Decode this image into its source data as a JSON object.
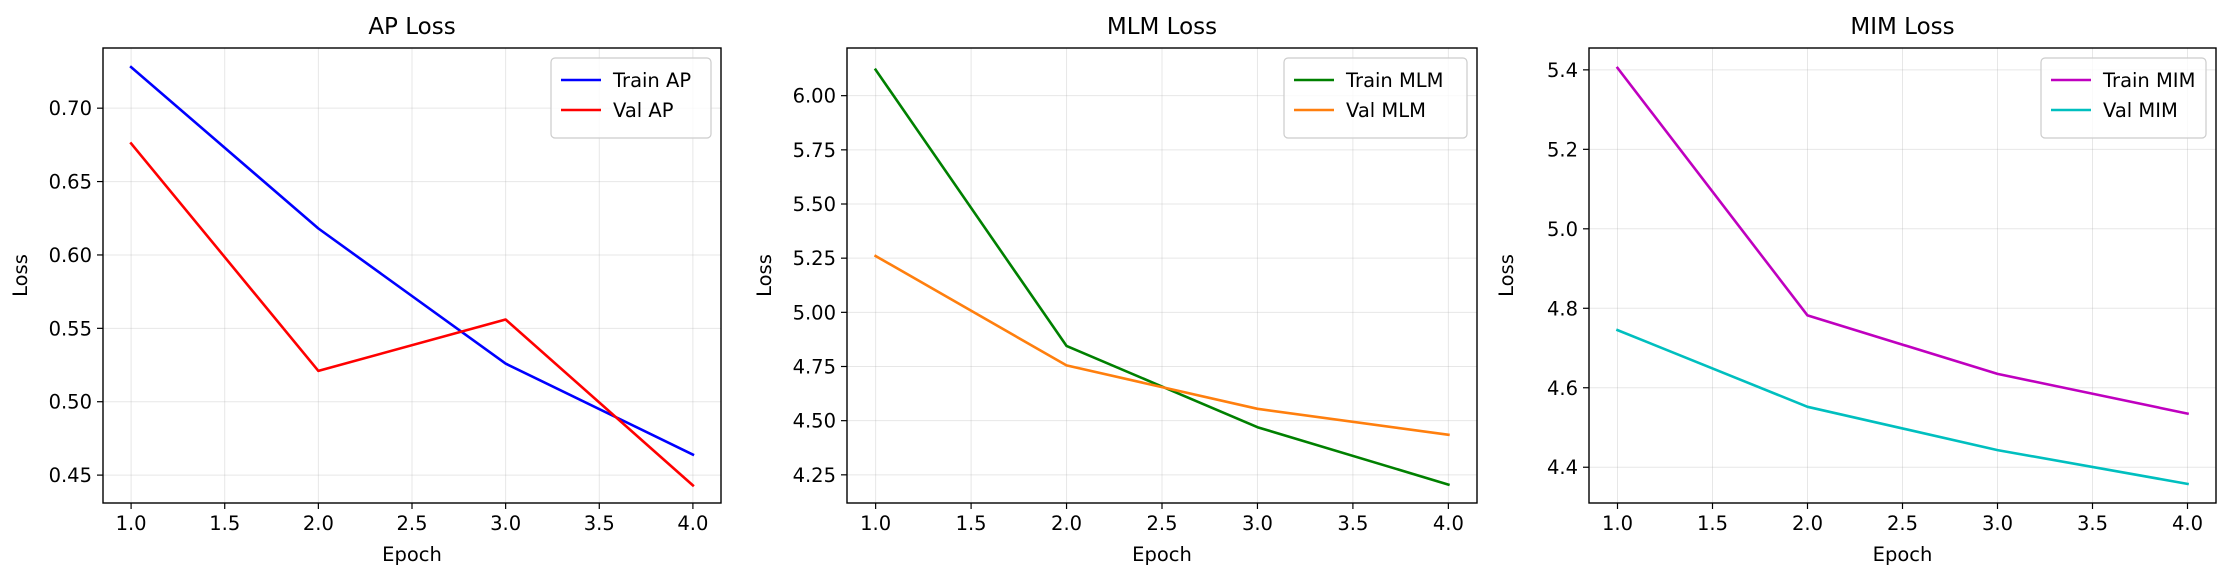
{
  "chart_data": [
    {
      "type": "line",
      "title": "AP Loss",
      "xlabel": "Epoch",
      "ylabel": "Loss",
      "xlim": [
        0.85,
        4.15
      ],
      "ylim": [
        0.431,
        0.741
      ],
      "xticks": [
        1.0,
        1.5,
        2.0,
        2.5,
        3.0,
        3.5,
        4.0
      ],
      "xtick_labels": [
        "1.0",
        "1.5",
        "2.0",
        "2.5",
        "3.0",
        "3.5",
        "4.0"
      ],
      "yticks": [
        0.45,
        0.5,
        0.55,
        0.6,
        0.65,
        0.7
      ],
      "ytick_labels": [
        "0.45",
        "0.50",
        "0.55",
        "0.60",
        "0.65",
        "0.70"
      ],
      "grid": true,
      "legend_position": "top-right",
      "series": [
        {
          "name": "Train AP",
          "color": "#0000ff",
          "x": [
            1,
            2,
            3,
            4
          ],
          "y": [
            0.728,
            0.618,
            0.526,
            0.464
          ]
        },
        {
          "name": "Val AP",
          "color": "#ff0000",
          "x": [
            1,
            2,
            3,
            4
          ],
          "y": [
            0.676,
            0.521,
            0.556,
            0.443
          ]
        }
      ]
    },
    {
      "type": "line",
      "title": "MLM Loss",
      "xlabel": "Epoch",
      "ylabel": "Loss",
      "xlim": [
        0.85,
        4.15
      ],
      "ylim": [
        4.12,
        6.22
      ],
      "xticks": [
        1.0,
        1.5,
        2.0,
        2.5,
        3.0,
        3.5,
        4.0
      ],
      "xtick_labels": [
        "1.0",
        "1.5",
        "2.0",
        "2.5",
        "3.0",
        "3.5",
        "4.0"
      ],
      "yticks": [
        4.25,
        4.5,
        4.75,
        5.0,
        5.25,
        5.5,
        5.75,
        6.0
      ],
      "ytick_labels": [
        "4.25",
        "4.50",
        "4.75",
        "5.00",
        "5.25",
        "5.50",
        "5.75",
        "6.00"
      ],
      "grid": true,
      "legend_position": "top-right",
      "series": [
        {
          "name": "Train MLM",
          "color": "#008000",
          "x": [
            1,
            2,
            3,
            4
          ],
          "y": [
            6.12,
            4.845,
            4.47,
            4.205
          ]
        },
        {
          "name": "Val MLM",
          "color": "#ff7f0e",
          "x": [
            1,
            2,
            3,
            4
          ],
          "y": [
            5.26,
            4.755,
            4.555,
            4.435
          ]
        }
      ]
    },
    {
      "type": "line",
      "title": "MIM Loss",
      "xlabel": "Epoch",
      "ylabel": "Loss",
      "xlim": [
        0.85,
        4.15
      ],
      "ylim": [
        4.31,
        5.455
      ],
      "xticks": [
        1.0,
        1.5,
        2.0,
        2.5,
        3.0,
        3.5,
        4.0
      ],
      "xtick_labels": [
        "1.0",
        "1.5",
        "2.0",
        "2.5",
        "3.0",
        "3.5",
        "4.0"
      ],
      "yticks": [
        4.4,
        4.6,
        4.8,
        5.0,
        5.2,
        5.4
      ],
      "ytick_labels": [
        "4.4",
        "4.6",
        "4.8",
        "5.0",
        "5.2",
        "5.4"
      ],
      "grid": true,
      "legend_position": "top-right",
      "series": [
        {
          "name": "Train MIM",
          "color": "#bf00bf",
          "x": [
            1,
            2,
            3,
            4
          ],
          "y": [
            5.405,
            4.782,
            4.635,
            4.535
          ]
        },
        {
          "name": "Val MIM",
          "color": "#00bfbf",
          "x": [
            1,
            2,
            3,
            4
          ],
          "y": [
            4.745,
            4.552,
            4.443,
            4.358
          ]
        }
      ]
    }
  ]
}
